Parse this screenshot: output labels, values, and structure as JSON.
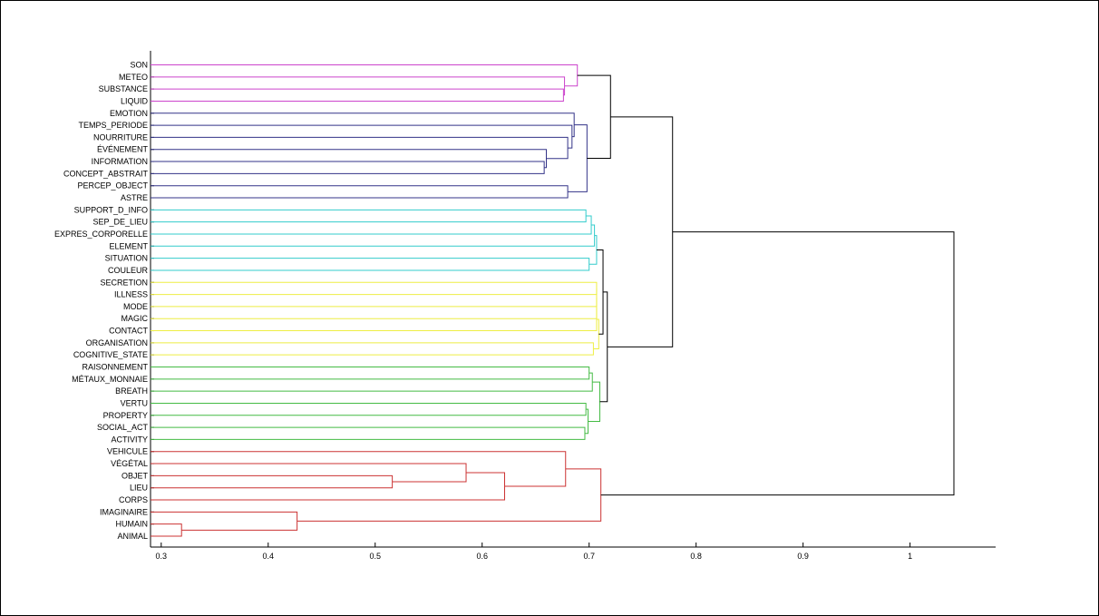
{
  "chart_data": {
    "type": "dendrogram",
    "orientation": "horizontal",
    "leaves": [
      "SON",
      "METEO",
      "SUBSTANCE",
      "LIQUID",
      "EMOTION",
      "TEMPS_PERIODE",
      "NOURRITURE",
      "ÉVÉNEMENT",
      "INFORMATION",
      "CONCEPT_ABSTRAIT",
      "PERCEP_OBJECT",
      "ASTRE",
      "SUPPORT_D_INFO",
      "SEP_DE_LIEU",
      "EXPRES_CORPORELLE",
      "ELEMENT",
      "SITUATION",
      "COULEUR",
      "SECRETION",
      "ILLNESS",
      "MODE",
      "MAGIC",
      "CONTACT",
      "ORGANISATION",
      "COGNITIVE_STATE",
      "RAISONNEMENT",
      "MÉTAUX_MONNAIE",
      "BREATH",
      "VERTU",
      "PROPERTY",
      "SOCIAL_ACT",
      "ACTIVITY",
      "VEHICULE",
      "VÉGÉTAL",
      "OBJET",
      "LIEU",
      "CORPS",
      "IMAGINAIRE",
      "HUMAIN",
      "ANIMAL"
    ],
    "x_ticks": [
      0.3,
      0.4,
      0.5,
      0.6,
      0.7,
      0.8,
      0.9,
      1
    ],
    "x_tick_labels": [
      "0.3",
      "0.4",
      "0.5",
      "0.6",
      "0.7",
      "0.8",
      "0.9",
      "1"
    ],
    "xlim": [
      0.29,
      1.08
    ],
    "leaf_start": 0.29,
    "clusters": [
      {
        "members": [
          2,
          3
        ],
        "height": 0.676,
        "color": "#cc44cc"
      },
      {
        "members": [
          1,
          40
        ],
        "height": 0.677,
        "color": "#cc44cc"
      },
      {
        "members": [
          0,
          41
        ],
        "height": 0.689,
        "color": "#cc44cc"
      },
      {
        "members": [
          8,
          9
        ],
        "height": 0.658,
        "color": "#333388"
      },
      {
        "members": [
          43,
          7
        ],
        "height": 0.66,
        "color": "#333388"
      },
      {
        "members": [
          44,
          6
        ],
        "height": 0.68,
        "color": "#333388"
      },
      {
        "members": [
          45,
          5
        ],
        "height": 0.684,
        "color": "#333388"
      },
      {
        "members": [
          46,
          4
        ],
        "height": 0.686,
        "color": "#333388"
      },
      {
        "members": [
          10,
          11
        ],
        "height": 0.68,
        "color": "#333388"
      },
      {
        "members": [
          47,
          48
        ],
        "height": 0.698,
        "color": "#333388"
      },
      {
        "members": [
          42,
          49
        ],
        "height": 0.72,
        "color": "#000000"
      },
      {
        "members": [
          16,
          17
        ],
        "height": 0.7,
        "color": "#33cccc"
      },
      {
        "members": [
          12,
          13
        ],
        "height": 0.697,
        "color": "#33cccc"
      },
      {
        "members": [
          52,
          14
        ],
        "height": 0.702,
        "color": "#33cccc"
      },
      {
        "members": [
          53,
          15
        ],
        "height": 0.705,
        "color": "#33cccc"
      },
      {
        "members": [
          54,
          51
        ],
        "height": 0.707,
        "color": "#33cccc"
      },
      {
        "members": [
          18,
          19
        ],
        "height": 0.707,
        "color": "#eeee44"
      },
      {
        "members": [
          56,
          20
        ],
        "height": 0.707,
        "color": "#eeee44"
      },
      {
        "members": [
          57,
          21
        ],
        "height": 0.707,
        "color": "#eeee44"
      },
      {
        "members": [
          58,
          22
        ],
        "height": 0.707,
        "color": "#eeee44"
      },
      {
        "members": [
          23,
          24
        ],
        "height": 0.704,
        "color": "#eeee44"
      },
      {
        "members": [
          59,
          60
        ],
        "height": 0.709,
        "color": "#eeee44"
      },
      {
        "members": [
          55,
          61
        ],
        "height": 0.713,
        "color": "#000000"
      },
      {
        "members": [
          25,
          26
        ],
        "height": 0.7,
        "color": "#44bb44"
      },
      {
        "members": [
          63,
          27
        ],
        "height": 0.703,
        "color": "#44bb44"
      },
      {
        "members": [
          28,
          29
        ],
        "height": 0.697,
        "color": "#44bb44"
      },
      {
        "members": [
          30,
          31
        ],
        "height": 0.696,
        "color": "#44bb44"
      },
      {
        "members": [
          65,
          66
        ],
        "height": 0.699,
        "color": "#44bb44"
      },
      {
        "members": [
          64,
          67
        ],
        "height": 0.71,
        "color": "#44bb44"
      },
      {
        "members": [
          62,
          68
        ],
        "height": 0.717,
        "color": "#000000"
      },
      {
        "members": [
          34,
          35
        ],
        "height": 0.516,
        "color": "#cc3333"
      },
      {
        "members": [
          33,
          70
        ],
        "height": 0.585,
        "color": "#cc3333"
      },
      {
        "members": [
          71,
          36
        ],
        "height": 0.621,
        "color": "#cc3333"
      },
      {
        "members": [
          32,
          72
        ],
        "height": 0.678,
        "color": "#cc3333"
      },
      {
        "members": [
          38,
          39
        ],
        "height": 0.319,
        "color": "#cc3333"
      },
      {
        "members": [
          37,
          74
        ],
        "height": 0.427,
        "color": "#cc3333"
      },
      {
        "members": [
          73,
          75
        ],
        "height": 0.711,
        "color": "#cc3333"
      },
      {
        "members": [
          50,
          69
        ],
        "height": 0.778,
        "color": "#000000"
      },
      {
        "members": [
          77,
          76
        ],
        "height": 1.041,
        "color": "#000000"
      }
    ],
    "grid": false,
    "title": "",
    "xlabel": "",
    "ylabel": ""
  }
}
